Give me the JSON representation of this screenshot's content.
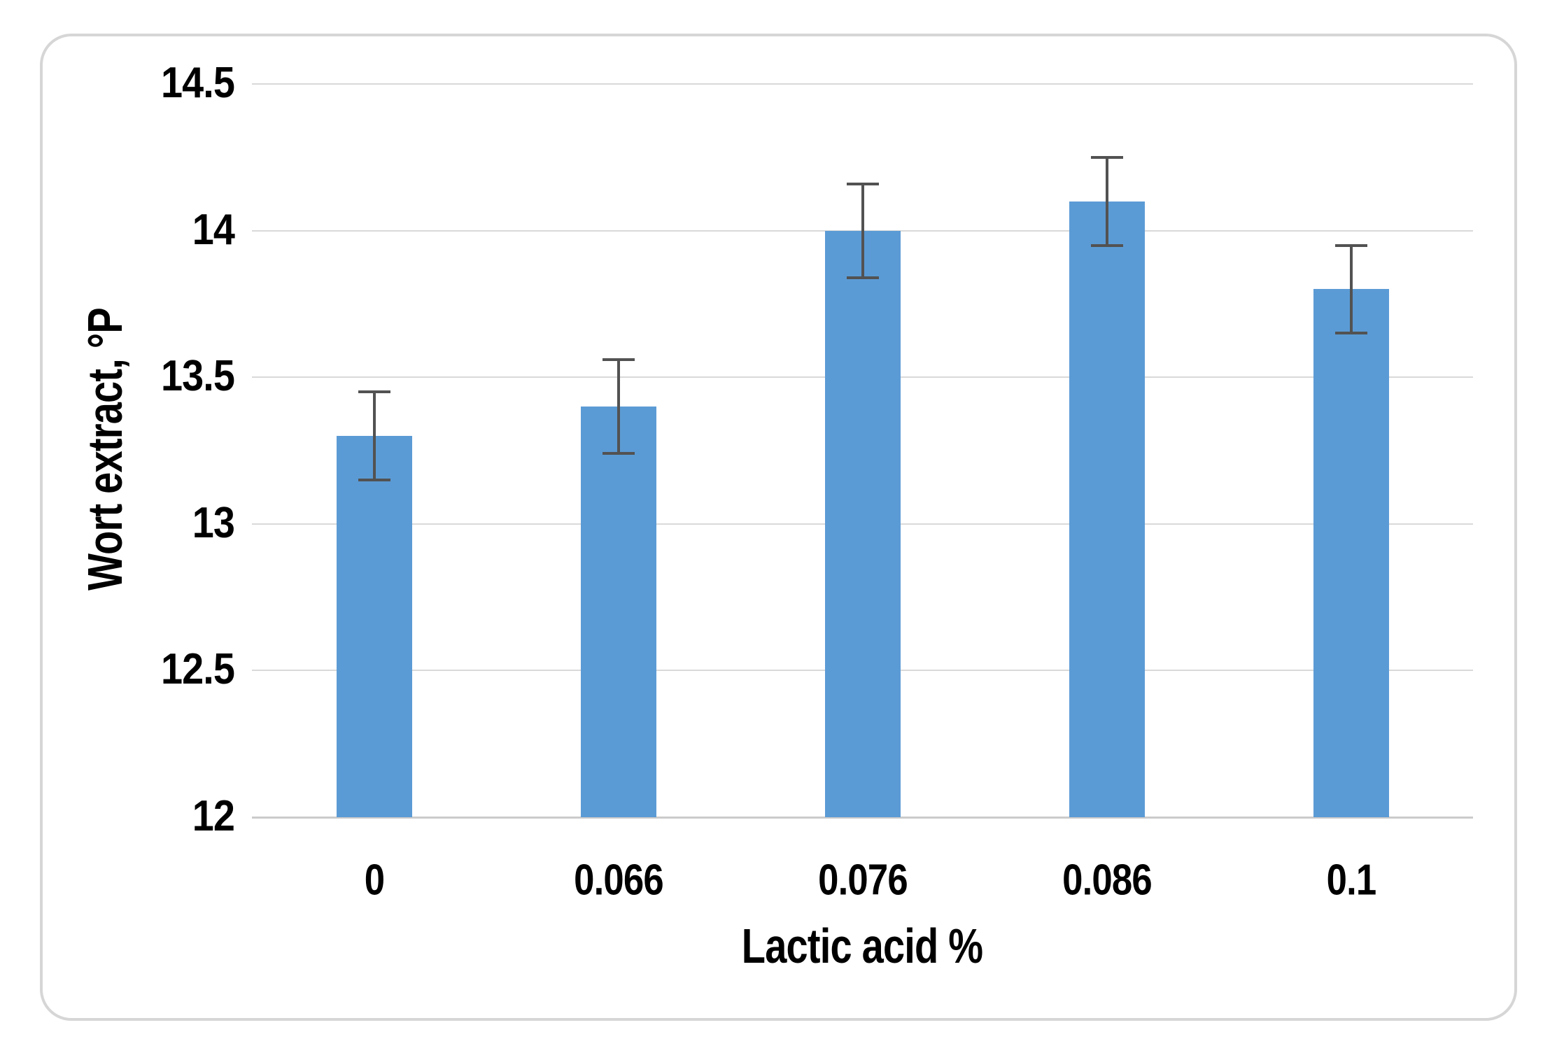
{
  "chart_data": {
    "type": "bar",
    "xlabel": "Lactic acid %",
    "ylabel": "Wort extract, °P",
    "categories": [
      "0",
      "0.066",
      "0.076",
      "0.086",
      "0.1"
    ],
    "values": [
      13.3,
      13.4,
      14.0,
      14.1,
      13.8
    ],
    "error_bars_plus": [
      0.15,
      0.16,
      0.16,
      0.15,
      0.15
    ],
    "error_bars_minus": [
      0.15,
      0.16,
      0.16,
      0.15,
      0.15
    ],
    "ylim": [
      12,
      14.5
    ],
    "ytick_step": 0.5,
    "ytick_labels": [
      "12",
      "12.5",
      "13",
      "13.5",
      "14",
      "14.5"
    ],
    "grid": true,
    "legend": "none",
    "colors": {
      "bar_fill": "#5B9BD5",
      "error_bar": "#525252",
      "gridline": "#D9D9D9",
      "axis_line": "#CBCBCB",
      "frame_border": "#D6D6D6",
      "text": "#000000",
      "background": "#FFFFFF"
    }
  }
}
